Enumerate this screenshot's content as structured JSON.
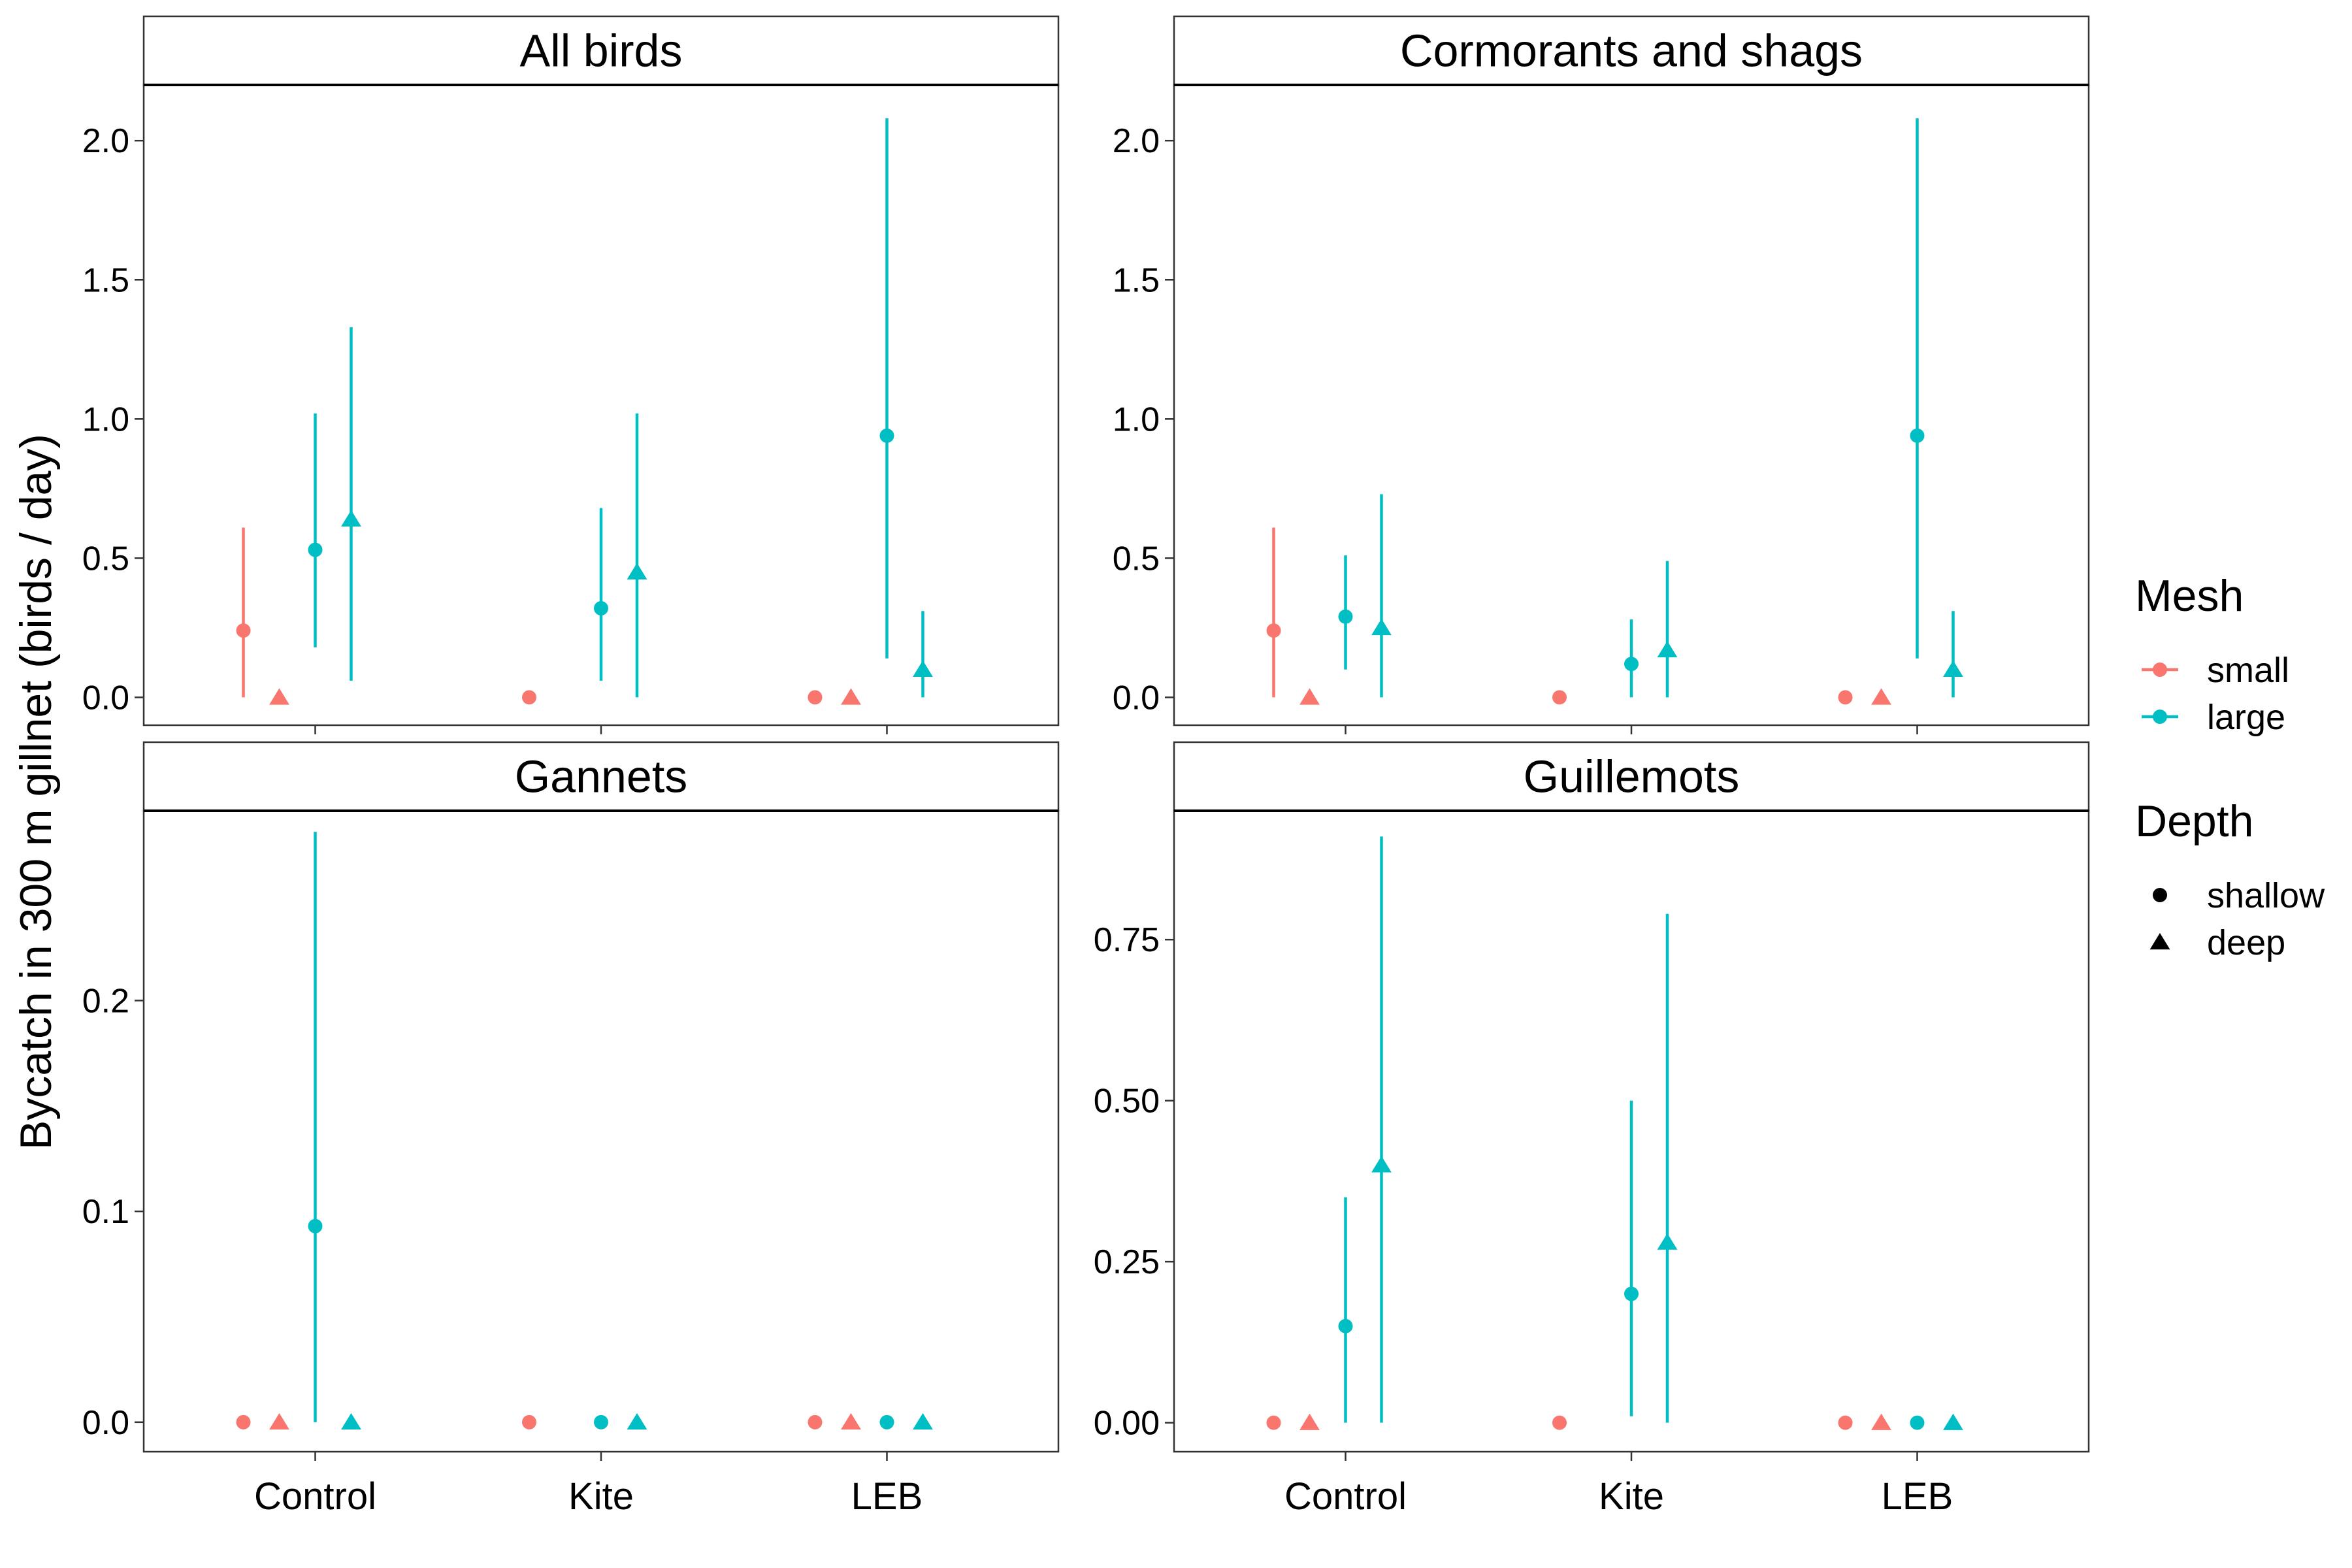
{
  "chart_data": {
    "type": "scatter",
    "subtype": "point-range faceted",
    "ylabel": "Bycatch in 300 m gillnet (birds / day)",
    "xlabel": "",
    "categories": [
      "Control",
      "Kite",
      "LEB"
    ],
    "grid": false,
    "legend_position": "right",
    "legends": [
      {
        "title": "Mesh",
        "items": [
          {
            "label": "small",
            "key": "small",
            "color": "#F8766D"
          },
          {
            "label": "large",
            "key": "large",
            "color": "#00BFC4"
          }
        ]
      },
      {
        "title": "Depth",
        "items": [
          {
            "label": "shallow",
            "key": "shallow",
            "shape": "circle"
          },
          {
            "label": "deep",
            "key": "deep",
            "shape": "triangle"
          }
        ]
      }
    ],
    "group_order": [
      "small-shallow",
      "small-deep",
      "large-shallow",
      "large-deep"
    ],
    "panels": [
      {
        "title": "All birds",
        "ylim": [
          -0.1,
          2.2
        ],
        "yticks": [
          0.0,
          0.5,
          1.0,
          1.5,
          2.0
        ],
        "ytick_labels": [
          "0.0",
          "0.5",
          "1.0",
          "1.5",
          "2.0"
        ],
        "points": [
          {
            "category": "Control",
            "mesh": "small",
            "depth": "shallow",
            "y": 0.24,
            "lo": 0.0,
            "hi": 0.61
          },
          {
            "category": "Control",
            "mesh": "small",
            "depth": "deep",
            "y": 0.0
          },
          {
            "category": "Control",
            "mesh": "large",
            "depth": "shallow",
            "y": 0.53,
            "lo": 0.18,
            "hi": 1.02
          },
          {
            "category": "Control",
            "mesh": "large",
            "depth": "deep",
            "y": 0.64,
            "lo": 0.06,
            "hi": 1.33
          },
          {
            "category": "Kite",
            "mesh": "small",
            "depth": "shallow",
            "y": 0.0
          },
          {
            "category": "Kite",
            "mesh": "large",
            "depth": "shallow",
            "y": 0.32,
            "lo": 0.06,
            "hi": 0.68
          },
          {
            "category": "Kite",
            "mesh": "large",
            "depth": "deep",
            "y": 0.45,
            "lo": 0.0,
            "hi": 1.02
          },
          {
            "category": "LEB",
            "mesh": "small",
            "depth": "shallow",
            "y": 0.0
          },
          {
            "category": "LEB",
            "mesh": "small",
            "depth": "deep",
            "y": 0.0
          },
          {
            "category": "LEB",
            "mesh": "large",
            "depth": "shallow",
            "y": 0.94,
            "lo": 0.14,
            "hi": 2.08
          },
          {
            "category": "LEB",
            "mesh": "large",
            "depth": "deep",
            "y": 0.1,
            "lo": 0.0,
            "hi": 0.31
          }
        ]
      },
      {
        "title": "Cormorants and shags",
        "ylim": [
          -0.1,
          2.2
        ],
        "yticks": [
          0.0,
          0.5,
          1.0,
          1.5,
          2.0
        ],
        "ytick_labels": [
          "0.0",
          "0.5",
          "1.0",
          "1.5",
          "2.0"
        ],
        "points": [
          {
            "category": "Control",
            "mesh": "small",
            "depth": "shallow",
            "y": 0.24,
            "lo": 0.0,
            "hi": 0.61
          },
          {
            "category": "Control",
            "mesh": "small",
            "depth": "deep",
            "y": 0.0
          },
          {
            "category": "Control",
            "mesh": "large",
            "depth": "shallow",
            "y": 0.29,
            "lo": 0.1,
            "hi": 0.51
          },
          {
            "category": "Control",
            "mesh": "large",
            "depth": "deep",
            "y": 0.25,
            "lo": 0.0,
            "hi": 0.73
          },
          {
            "category": "Kite",
            "mesh": "small",
            "depth": "shallow",
            "y": 0.0
          },
          {
            "category": "Kite",
            "mesh": "large",
            "depth": "shallow",
            "y": 0.12,
            "lo": 0.0,
            "hi": 0.28
          },
          {
            "category": "Kite",
            "mesh": "large",
            "depth": "deep",
            "y": 0.17,
            "lo": 0.0,
            "hi": 0.49
          },
          {
            "category": "LEB",
            "mesh": "small",
            "depth": "shallow",
            "y": 0.0
          },
          {
            "category": "LEB",
            "mesh": "small",
            "depth": "deep",
            "y": 0.0
          },
          {
            "category": "LEB",
            "mesh": "large",
            "depth": "shallow",
            "y": 0.94,
            "lo": 0.14,
            "hi": 2.08
          },
          {
            "category": "LEB",
            "mesh": "large",
            "depth": "deep",
            "y": 0.1,
            "lo": 0.0,
            "hi": 0.31
          }
        ]
      },
      {
        "title": "Gannets",
        "ylim": [
          -0.014,
          0.29
        ],
        "yticks": [
          0.0,
          0.1,
          0.2
        ],
        "ytick_labels": [
          "0.0",
          "0.1",
          "0.2"
        ],
        "points": [
          {
            "category": "Control",
            "mesh": "small",
            "depth": "shallow",
            "y": 0.0
          },
          {
            "category": "Control",
            "mesh": "small",
            "depth": "deep",
            "y": 0.0
          },
          {
            "category": "Control",
            "mesh": "large",
            "depth": "shallow",
            "y": 0.093,
            "lo": 0.0,
            "hi": 0.28
          },
          {
            "category": "Control",
            "mesh": "large",
            "depth": "deep",
            "y": 0.0
          },
          {
            "category": "Kite",
            "mesh": "small",
            "depth": "shallow",
            "y": 0.0
          },
          {
            "category": "Kite",
            "mesh": "large",
            "depth": "shallow",
            "y": 0.0
          },
          {
            "category": "Kite",
            "mesh": "large",
            "depth": "deep",
            "y": 0.0
          },
          {
            "category": "LEB",
            "mesh": "small",
            "depth": "shallow",
            "y": 0.0
          },
          {
            "category": "LEB",
            "mesh": "small",
            "depth": "deep",
            "y": 0.0
          },
          {
            "category": "LEB",
            "mesh": "large",
            "depth": "shallow",
            "y": 0.0
          },
          {
            "category": "LEB",
            "mesh": "large",
            "depth": "deep",
            "y": 0.0
          }
        ]
      },
      {
        "title": "Guillemots",
        "ylim": [
          -0.045,
          0.95
        ],
        "yticks": [
          0.0,
          0.25,
          0.5,
          0.75
        ],
        "ytick_labels": [
          "0.00",
          "0.25",
          "0.50",
          "0.75"
        ],
        "points": [
          {
            "category": "Control",
            "mesh": "small",
            "depth": "shallow",
            "y": 0.0
          },
          {
            "category": "Control",
            "mesh": "small",
            "depth": "deep",
            "y": 0.0
          },
          {
            "category": "Control",
            "mesh": "large",
            "depth": "shallow",
            "y": 0.15,
            "lo": 0.0,
            "hi": 0.35
          },
          {
            "category": "Control",
            "mesh": "large",
            "depth": "deep",
            "y": 0.4,
            "lo": 0.0,
            "hi": 0.91
          },
          {
            "category": "Kite",
            "mesh": "small",
            "depth": "shallow",
            "y": 0.0
          },
          {
            "category": "Kite",
            "mesh": "large",
            "depth": "shallow",
            "y": 0.2,
            "lo": 0.01,
            "hi": 0.5
          },
          {
            "category": "Kite",
            "mesh": "large",
            "depth": "deep",
            "y": 0.28,
            "lo": 0.0,
            "hi": 0.79
          },
          {
            "category": "LEB",
            "mesh": "small",
            "depth": "shallow",
            "y": 0.0
          },
          {
            "category": "LEB",
            "mesh": "small",
            "depth": "deep",
            "y": 0.0
          },
          {
            "category": "LEB",
            "mesh": "large",
            "depth": "shallow",
            "y": 0.0
          },
          {
            "category": "LEB",
            "mesh": "large",
            "depth": "deep",
            "y": 0.0
          }
        ]
      }
    ]
  }
}
